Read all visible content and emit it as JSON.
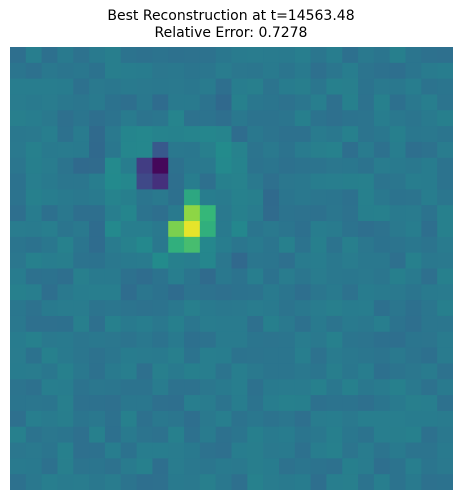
{
  "chart_data": {
    "type": "heatmap",
    "title": "Best Reconstruction at t=14563.48",
    "subtitle": "Relative Error: 0.7278",
    "axes_visible": false,
    "colormap": "viridis",
    "vmin": -1.0,
    "vmax": 1.0,
    "grid_size": [
      28,
      28
    ],
    "features": [
      {
        "row": 7,
        "col": 9,
        "value": -0.95
      },
      {
        "row": 8,
        "col": 9,
        "value": -0.65
      },
      {
        "row": 7,
        "col": 8,
        "value": -0.55
      },
      {
        "row": 8,
        "col": 8,
        "value": -0.45
      },
      {
        "row": 6,
        "col": 9,
        "value": -0.3
      },
      {
        "row": 11,
        "col": 11,
        "value": 0.95
      },
      {
        "row": 10,
        "col": 11,
        "value": 0.75
      },
      {
        "row": 11,
        "col": 10,
        "value": 0.7
      },
      {
        "row": 12,
        "col": 11,
        "value": 0.55
      },
      {
        "row": 10,
        "col": 12,
        "value": 0.5
      },
      {
        "row": 12,
        "col": 10,
        "value": 0.45
      },
      {
        "row": 9,
        "col": 11,
        "value": 0.4
      },
      {
        "row": 11,
        "col": 12,
        "value": 0.45
      }
    ]
  }
}
